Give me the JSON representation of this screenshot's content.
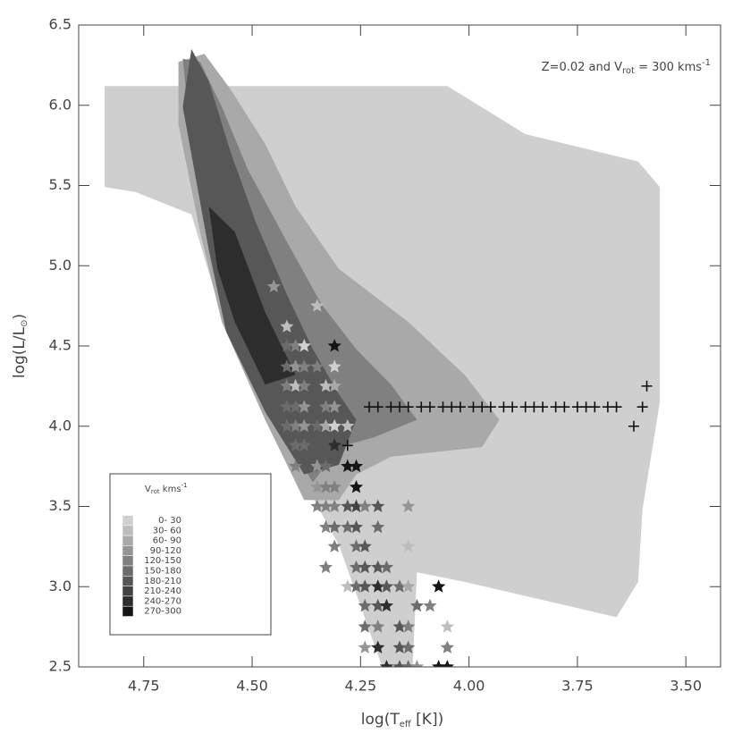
{
  "chart_data": {
    "type": "scatter",
    "annotation": {
      "a": "Z=0.02 and V",
      "sub": "rot",
      "b": " = 300 kms",
      "sup": "-1"
    },
    "xlabel": {
      "a": "log(T",
      "sub": "eff",
      "b": " [K])"
    },
    "ylabel": {
      "a": "log(L/L",
      "sub": "⊙",
      "b": ")"
    },
    "xlim": [
      4.9,
      3.42
    ],
    "ylim": [
      2.5,
      6.5
    ],
    "xticks": [
      4.75,
      {
        "value": 4.5,
        "label": "4.50"
      },
      4.25,
      {
        "value": 4,
        "label": "4.00"
      },
      3.75,
      {
        "value": 3.5,
        "label": "3.50"
      }
    ],
    "yticks": [
      2.5,
      {
        "value": 3,
        "label": "3.0"
      },
      3.5,
      {
        "value": 4,
        "label": "4.0"
      },
      4.5,
      {
        "value": 5,
        "label": "5.0"
      },
      5.5,
      {
        "value": 6,
        "label": "6.0"
      },
      6.5
    ],
    "legend": {
      "title": {
        "a": "V",
        "sub": "rot",
        "b": " kms",
        "sup": "-1"
      },
      "labels": [
        "0- 30",
        "30- 60",
        "60- 90",
        "90-120",
        "120-150",
        "150-180",
        "180-210",
        "210-240",
        "240-270",
        "270-300"
      ],
      "colors": [
        "#cfcfcf",
        "#bdbdbd",
        "#a9a9a9",
        "#959595",
        "#808080",
        "#6c6c6c",
        "#575757",
        "#424242",
        "#2d2d2d",
        "#151515"
      ]
    },
    "contours": [
      {
        "level": 0,
        "x": [
          4.84,
          4.05,
          3.87,
          3.61,
          3.56,
          3.56,
          3.6,
          3.61,
          3.66,
          4.01,
          4.12,
          4.13,
          4.2,
          4.3,
          4.47,
          4.59,
          4.64,
          4.77,
          4.84
        ],
        "y": [
          6.12,
          6.12,
          5.82,
          5.65,
          5.49,
          4.15,
          3.48,
          3.03,
          2.81,
          3.03,
          3.09,
          2.5,
          2.5,
          3.26,
          4.09,
          4.87,
          5.32,
          5.46,
          5.49
        ]
      },
      {
        "level": 2,
        "x": [
          4.67,
          4.61,
          4.55,
          4.47,
          4.4,
          4.3,
          4.14,
          4.01,
          3.93,
          3.97,
          4.18,
          4.26,
          4.3,
          4.38,
          4.47,
          4.57,
          4.62,
          4.67
        ],
        "y": [
          6.27,
          6.32,
          6.1,
          5.76,
          5.37,
          4.98,
          4.65,
          4.32,
          4.04,
          3.87,
          3.81,
          3.7,
          3.54,
          3.54,
          4.04,
          4.65,
          5.21,
          5.88
        ]
      },
      {
        "level": 4,
        "x": [
          4.66,
          4.62,
          4.57,
          4.51,
          4.42,
          4.34,
          4.26,
          4.18,
          4.12,
          4.22,
          4.3,
          4.36,
          4.45,
          4.55,
          4.6,
          4.64
        ],
        "y": [
          6.29,
          6.27,
          5.99,
          5.6,
          5.15,
          4.76,
          4.48,
          4.26,
          4.04,
          3.93,
          3.87,
          3.65,
          4.04,
          4.65,
          5.15,
          5.76
        ]
      },
      {
        "level": 6,
        "x": [
          4.64,
          4.6,
          4.55,
          4.49,
          4.42,
          4.36,
          4.3,
          4.26,
          4.3,
          4.38,
          4.47,
          4.56,
          4.6,
          4.66
        ],
        "y": [
          6.35,
          6.15,
          5.71,
          5.26,
          4.82,
          4.48,
          4.2,
          4.04,
          3.76,
          3.7,
          4.09,
          4.59,
          5.1,
          5.99
        ]
      },
      {
        "level": 8,
        "x": [
          4.6,
          4.54,
          4.47,
          4.4,
          4.47,
          4.54,
          4.58
        ],
        "y": [
          5.37,
          5.21,
          4.71,
          4.32,
          4.26,
          4.65,
          4.98
        ]
      }
    ],
    "series": [
      {
        "name": "stars",
        "marker": "star",
        "x": [
          4.45,
          4.35,
          4.42,
          4.42,
          4.4,
          4.38,
          4.31,
          4.42,
          4.4,
          4.38,
          4.35,
          4.31,
          4.42,
          4.4,
          4.38,
          4.33,
          4.31,
          4.42,
          4.4,
          4.38,
          4.35,
          4.33,
          4.31,
          4.42,
          4.4,
          4.38,
          4.35,
          4.33,
          4.31,
          4.28,
          4.4,
          4.38,
          4.35,
          4.33,
          4.31,
          4.4,
          4.35,
          4.33,
          4.28,
          4.26,
          4.35,
          4.33,
          4.31,
          4.26,
          4.35,
          4.33,
          4.31,
          4.28,
          4.26,
          4.24,
          4.21,
          4.14,
          4.33,
          4.31,
          4.28,
          4.26,
          4.21,
          4.31,
          4.26,
          4.24,
          4.14,
          4.33,
          4.26,
          4.24,
          4.21,
          4.19,
          4.28,
          4.26,
          4.24,
          4.21,
          4.19,
          4.16,
          4.14,
          4.07,
          4.24,
          4.21,
          4.19,
          4.12,
          4.09,
          4.24,
          4.21,
          4.16,
          4.14,
          4.05,
          4.24,
          4.21,
          4.16,
          4.14,
          4.05,
          4.19,
          4.16,
          4.14,
          4.12,
          4.07,
          4.05
        ],
        "y": [
          4.87,
          4.75,
          4.62,
          4.5,
          4.5,
          4.5,
          4.5,
          4.37,
          4.37,
          4.37,
          4.37,
          4.37,
          4.25,
          4.25,
          4.25,
          4.25,
          4.25,
          4.12,
          4.12,
          4.12,
          4.12,
          4.12,
          4.12,
          4.0,
          4.0,
          4.0,
          4.0,
          4.0,
          4.0,
          4.0,
          3.88,
          3.88,
          3.88,
          3.88,
          3.88,
          3.75,
          3.75,
          3.75,
          3.75,
          3.75,
          3.62,
          3.62,
          3.62,
          3.62,
          3.5,
          3.5,
          3.5,
          3.5,
          3.5,
          3.5,
          3.5,
          3.5,
          3.37,
          3.37,
          3.37,
          3.37,
          3.37,
          3.25,
          3.25,
          3.25,
          3.25,
          3.12,
          3.12,
          3.12,
          3.12,
          3.12,
          3.0,
          3.0,
          3.0,
          3.0,
          3.0,
          3.0,
          3.0,
          3.0,
          2.88,
          2.88,
          2.88,
          2.88,
          2.88,
          2.75,
          2.75,
          2.75,
          2.75,
          2.75,
          2.62,
          2.62,
          2.62,
          2.62,
          2.62,
          2.5,
          2.5,
          2.5,
          2.5,
          2.5,
          2.5
        ],
        "level": [
          3,
          1,
          1,
          5,
          4,
          0,
          9,
          5,
          3,
          4,
          4,
          0,
          4,
          1,
          4,
          1,
          2,
          5,
          5,
          3,
          6,
          4,
          3,
          5,
          4,
          3,
          5,
          2,
          0,
          1,
          5,
          5,
          6,
          6,
          8,
          4,
          3,
          5,
          9,
          9,
          3,
          4,
          4,
          9,
          4,
          4,
          4,
          6,
          7,
          4,
          6,
          3,
          4,
          5,
          5,
          6,
          5,
          4,
          5,
          6,
          1,
          4,
          5,
          6,
          6,
          5,
          1,
          5,
          6,
          8,
          6,
          5,
          2,
          9,
          5,
          6,
          8,
          5,
          4,
          5,
          4,
          6,
          4,
          1,
          3,
          8,
          6,
          5,
          4,
          8,
          6,
          5,
          3,
          9,
          9
        ]
      },
      {
        "name": "crosses",
        "marker": "plus",
        "color": "#111111",
        "x": [
          4.23,
          4.21,
          4.18,
          4.16,
          4.14,
          4.11,
          4.09,
          4.06,
          4.04,
          4.02,
          3.99,
          3.97,
          3.95,
          3.92,
          3.9,
          3.87,
          3.85,
          3.83,
          3.8,
          3.78,
          3.75,
          3.73,
          3.71,
          3.68,
          3.66,
          4.28,
          3.62,
          3.6,
          3.59
        ],
        "y": [
          4.12,
          4.12,
          4.12,
          4.12,
          4.12,
          4.12,
          4.12,
          4.12,
          4.12,
          4.12,
          4.12,
          4.12,
          4.12,
          4.12,
          4.12,
          4.12,
          4.12,
          4.12,
          4.12,
          4.12,
          4.12,
          4.12,
          4.12,
          4.12,
          4.12,
          3.88,
          4.0,
          4.12,
          4.25
        ]
      }
    ]
  }
}
